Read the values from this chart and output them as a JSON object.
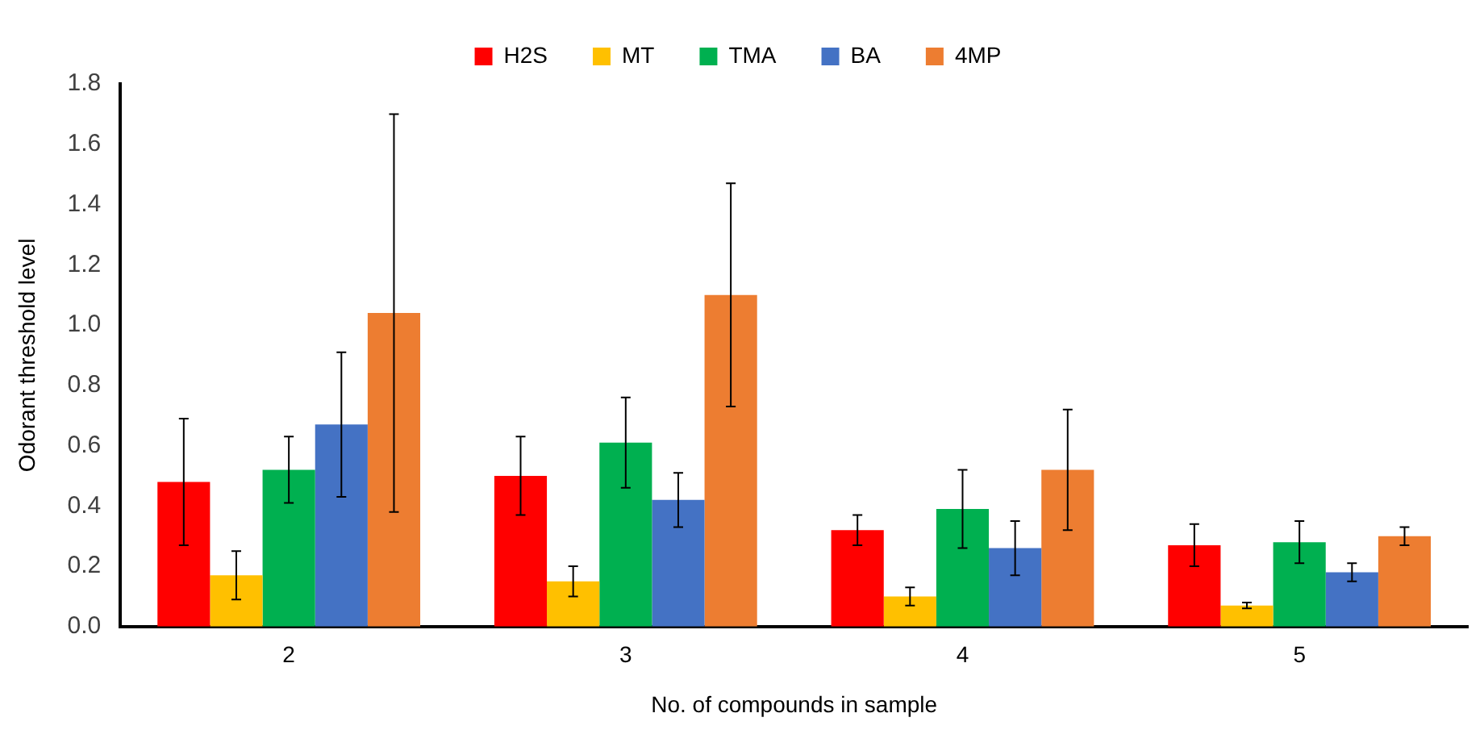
{
  "chart_data": {
    "type": "bar",
    "xlabel": "No. of compounds in sample",
    "ylabel": "Odorant threshold level",
    "categories": [
      "2",
      "3",
      "4",
      "5"
    ],
    "series": [
      {
        "name": "H2S",
        "color": "#ff0000",
        "values": [
          0.48,
          0.5,
          0.32,
          0.27
        ],
        "errors": [
          0.21,
          0.13,
          0.05,
          0.07
        ]
      },
      {
        "name": "MT",
        "color": "#ffc000",
        "values": [
          0.17,
          0.15,
          0.1,
          0.07
        ],
        "errors": [
          0.08,
          0.05,
          0.03,
          0.01
        ]
      },
      {
        "name": "TMA",
        "color": "#00b050",
        "values": [
          0.52,
          0.61,
          0.39,
          0.28
        ],
        "errors": [
          0.11,
          0.15,
          0.13,
          0.07
        ]
      },
      {
        "name": "BA",
        "color": "#4472c4",
        "values": [
          0.67,
          0.42,
          0.26,
          0.18
        ],
        "errors": [
          0.24,
          0.09,
          0.09,
          0.03
        ]
      },
      {
        "name": "4MP",
        "color": "#ed7d31",
        "values": [
          1.04,
          1.1,
          0.52,
          0.3
        ],
        "errors": [
          0.66,
          0.37,
          0.2,
          0.03
        ]
      }
    ],
    "ylim": [
      0,
      1.8
    ],
    "yticks": [
      {
        "value": 0,
        "label": "0.0"
      },
      0.2,
      0.4,
      0.6,
      0.8,
      {
        "value": 1,
        "label": "1.0"
      },
      1.2,
      1.4,
      1.6,
      1.8
    ],
    "grid": false,
    "legend": "top"
  }
}
